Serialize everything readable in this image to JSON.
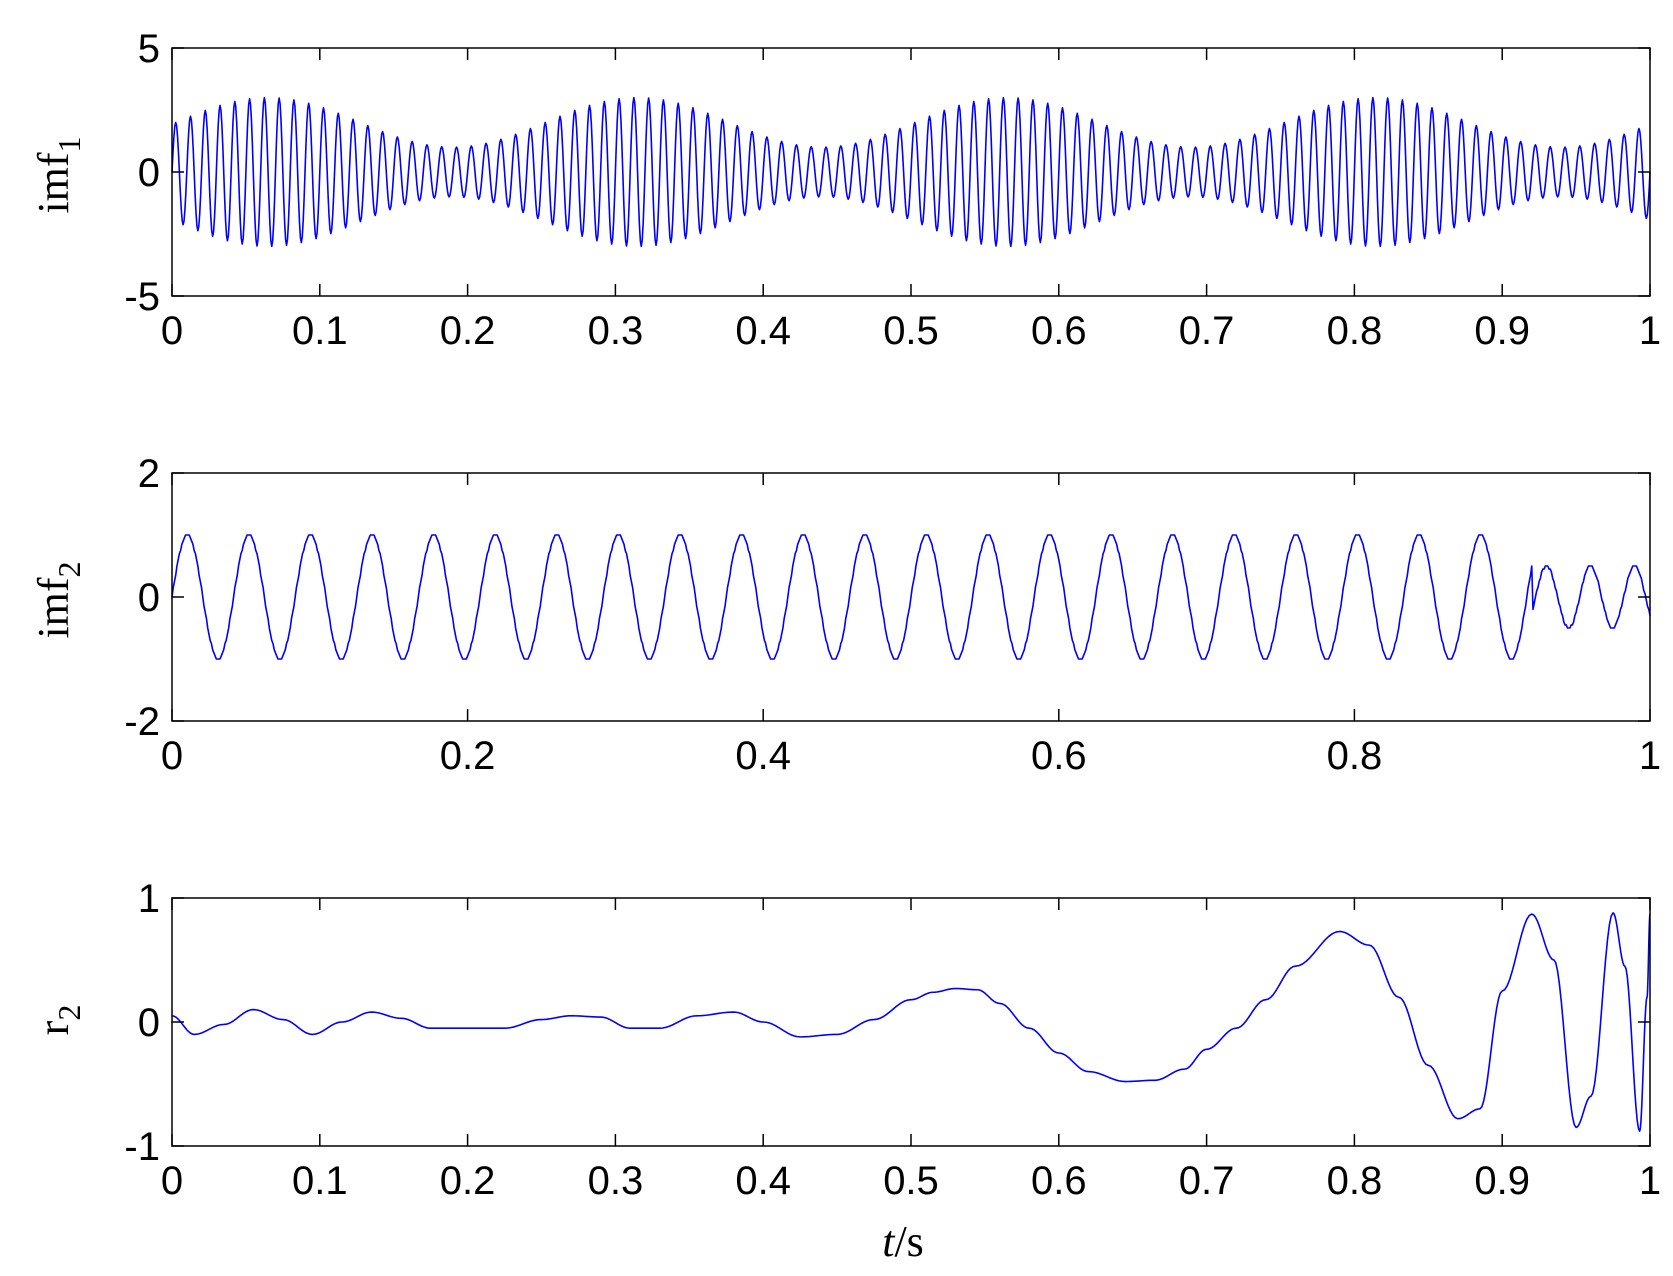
{
  "chart_data": [
    {
      "type": "line",
      "ylabel": "imf",
      "ylabel_sub": "1",
      "xlabel": "",
      "xlim": [
        0,
        1
      ],
      "ylim": [
        -5,
        5
      ],
      "xticks": [
        0,
        0.1,
        0.2,
        0.3,
        0.4,
        0.5,
        0.6,
        0.7,
        0.8,
        0.9,
        1
      ],
      "xtick_labels": [
        "0",
        "0.1",
        "0.2",
        "0.3",
        "0.4",
        "0.5",
        "0.6",
        "0.7",
        "0.8",
        "0.9",
        "1"
      ],
      "yticks": [
        -5,
        0,
        5
      ],
      "ytick_labels": [
        "-5",
        "0",
        "5"
      ],
      "grid": false,
      "series_color": "#0000ff",
      "signal": {
        "description_free_model": "am",
        "carrier_hz": 100,
        "modulation_hz": 4,
        "amplitude_mean": 2.0,
        "amplitude_swing": 1.0,
        "peak_amplitude_max": 3.0,
        "peak_amplitude_min": 1.0,
        "envelope_peaks_t": [
          0.065,
          0.315,
          0.565,
          0.815
        ]
      }
    },
    {
      "type": "line",
      "ylabel": "imf",
      "ylabel_sub": "2",
      "xlabel": "",
      "xlim": [
        0,
        1
      ],
      "ylim": [
        -2,
        2
      ],
      "xticks": [
        0,
        0.2,
        0.4,
        0.6,
        0.8,
        1
      ],
      "xtick_labels": [
        "0",
        "0.2",
        "0.4",
        "0.6",
        "0.8",
        "1"
      ],
      "yticks": [
        -2,
        0,
        2
      ],
      "ytick_labels": [
        "-2",
        "0",
        "2"
      ],
      "grid": false,
      "series_color": "#0000ff",
      "signal": {
        "frequency_hz": 24,
        "amplitude": 1.0,
        "tail_start_t": 0.92,
        "tail_amplitude": 0.5
      }
    },
    {
      "type": "line",
      "ylabel": "r",
      "ylabel_sub": "2",
      "xlabel": "t/s",
      "xlim": [
        0,
        1
      ],
      "ylim": [
        -1,
        1
      ],
      "xticks": [
        0,
        0.1,
        0.2,
        0.3,
        0.4,
        0.5,
        0.6,
        0.7,
        0.8,
        0.9,
        1
      ],
      "xtick_labels": [
        "0",
        "0.1",
        "0.2",
        "0.3",
        "0.4",
        "0.5",
        "0.6",
        "0.7",
        "0.8",
        "0.9",
        "1"
      ],
      "yticks": [
        -1,
        0,
        1
      ],
      "ytick_labels": [
        "-1",
        "0",
        "1"
      ],
      "grid": false,
      "series_color": "#0000ff",
      "x": [
        0,
        0.015,
        0.035,
        0.055,
        0.075,
        0.095,
        0.115,
        0.135,
        0.155,
        0.175,
        0.2,
        0.225,
        0.25,
        0.27,
        0.29,
        0.31,
        0.33,
        0.355,
        0.38,
        0.4,
        0.425,
        0.45,
        0.475,
        0.5,
        0.515,
        0.53,
        0.545,
        0.56,
        0.58,
        0.6,
        0.62,
        0.645,
        0.665,
        0.685,
        0.7,
        0.72,
        0.74,
        0.76,
        0.79,
        0.81,
        0.83,
        0.85,
        0.87,
        0.885,
        0.9,
        0.92,
        0.935,
        0.95,
        0.96,
        0.975,
        0.983,
        0.993,
        0.998,
        1.0
      ],
      "y": [
        0.05,
        -0.1,
        -0.02,
        0.1,
        0.02,
        -0.1,
        0.0,
        0.08,
        0.03,
        -0.05,
        -0.05,
        -0.05,
        0.02,
        0.05,
        0.04,
        -0.05,
        -0.05,
        0.05,
        0.08,
        0.0,
        -0.12,
        -0.1,
        0.02,
        0.18,
        0.24,
        0.27,
        0.26,
        0.15,
        -0.05,
        -0.25,
        -0.4,
        -0.48,
        -0.47,
        -0.38,
        -0.22,
        -0.05,
        0.18,
        0.45,
        0.73,
        0.62,
        0.2,
        -0.35,
        -0.78,
        -0.7,
        0.25,
        0.87,
        0.5,
        -0.85,
        -0.6,
        0.88,
        0.45,
        -0.88,
        0.2,
        0.87
      ]
    }
  ]
}
